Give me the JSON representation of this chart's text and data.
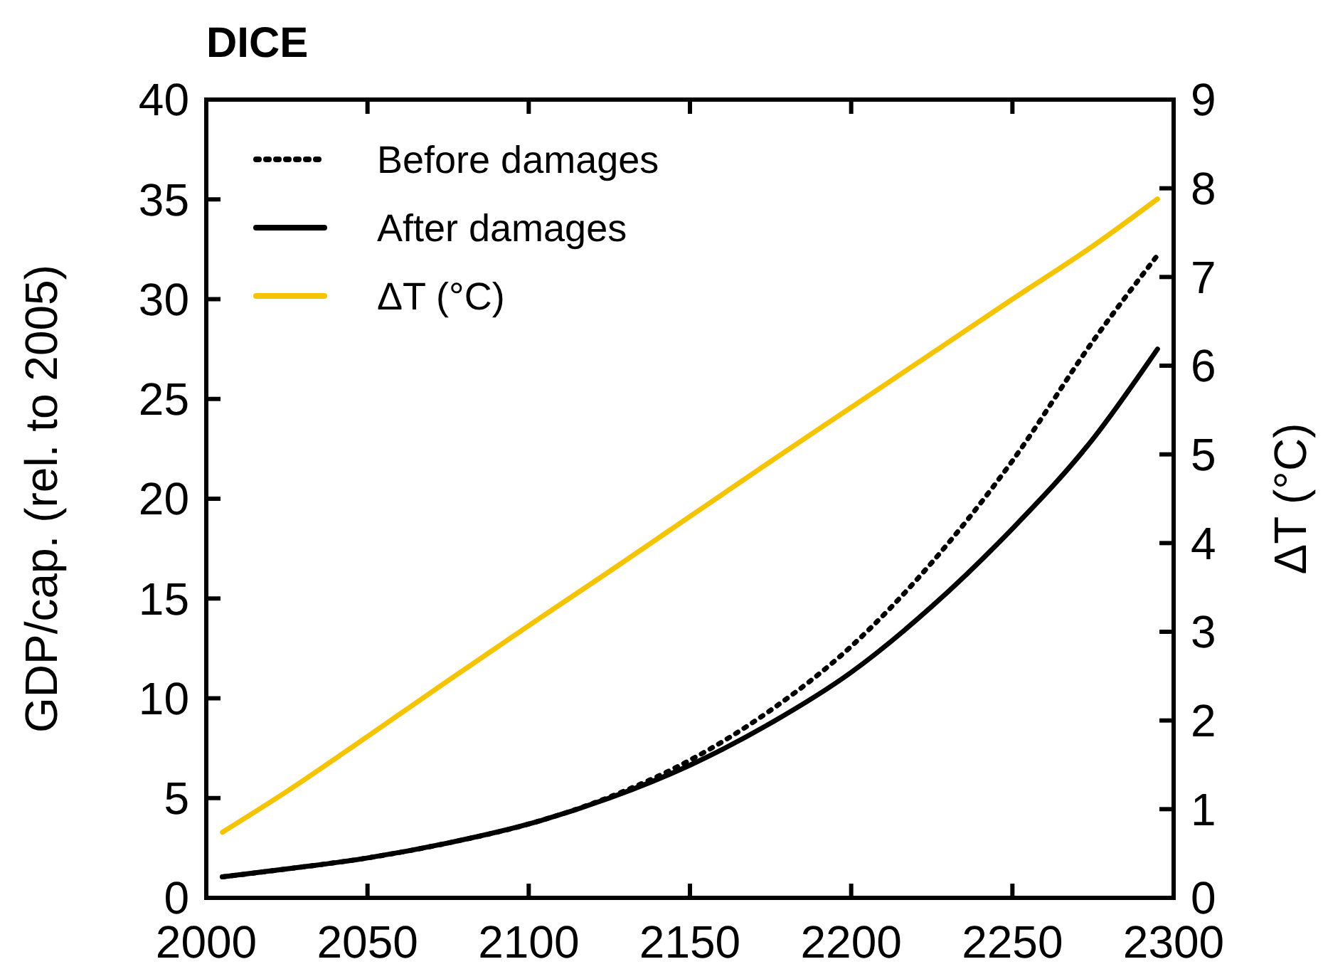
{
  "chart_data": {
    "type": "line",
    "title": "DICE",
    "ylabel": "GDP/cap. (rel. to 2005)",
    "y2label": "ΔT (°C)",
    "xlim": [
      2000,
      2300
    ],
    "xticks": [
      2000,
      2050,
      2100,
      2150,
      2200,
      2250,
      2300
    ],
    "ylim": [
      0,
      40
    ],
    "yticks": [
      0,
      5,
      10,
      15,
      20,
      25,
      30,
      35,
      40
    ],
    "y2lim": [
      0,
      9
    ],
    "y2ticks": [
      0,
      1,
      2,
      3,
      4,
      5,
      6,
      7,
      8,
      9
    ],
    "grid": false,
    "legend": "top left",
    "x": [
      2005,
      2025,
      2050,
      2075,
      2100,
      2125,
      2150,
      2175,
      2200,
      2225,
      2250,
      2275,
      2295
    ],
    "series": [
      {
        "name": "Before damages",
        "color": "#000000",
        "line_style": "dotted",
        "values": [
          1.05,
          1.45,
          2.0,
          2.75,
          3.7,
          5.05,
          6.9,
          9.4,
          12.6,
          16.8,
          21.9,
          27.9,
          32.2
        ]
      },
      {
        "name": "After damages",
        "color": "#000000",
        "line_style": "solid",
        "values": [
          1.05,
          1.45,
          2.0,
          2.75,
          3.7,
          5.0,
          6.65,
          8.75,
          11.3,
          14.6,
          18.5,
          23.0,
          27.5
        ]
      },
      {
        "name": "ΔT (°C)",
        "color": "#f5c400",
        "line_style": "solid",
        "axis": "y2",
        "values": [
          0.74,
          1.2,
          1.82,
          2.45,
          3.07,
          3.68,
          4.3,
          4.92,
          5.53,
          6.14,
          6.75,
          7.35,
          7.88
        ]
      }
    ]
  }
}
